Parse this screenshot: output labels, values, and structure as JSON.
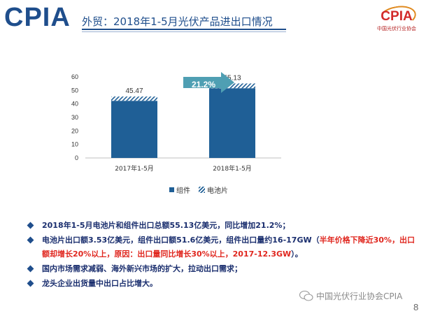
{
  "header": {
    "brand": "CPIA",
    "title": "外贸：2018年1-5月光伏产品进出口情况",
    "logo_text": "CPIA",
    "logo_subtitle": "中国光伏行业协会"
  },
  "growth_callout": "21.2%",
  "chart_data": {
    "type": "bar",
    "stacked": true,
    "categories": [
      "2017年1-5月",
      "2018年1-5月"
    ],
    "series": [
      {
        "name": "组件",
        "values": [
          42.3,
          51.6
        ],
        "color": "#1f5f96"
      },
      {
        "name": "电池片",
        "values": [
          3.17,
          3.53
        ],
        "color": "#1f5f96",
        "pattern": "hatch"
      }
    ],
    "totals": [
      "45.47",
      "55.13"
    ],
    "y_ticks": [
      "0",
      "10",
      "20",
      "30",
      "40",
      "50",
      "60"
    ],
    "ylim": [
      0,
      60
    ],
    "grid": false,
    "legend_position": "bottom"
  },
  "legend": {
    "item1": "组件",
    "item2": "电池片"
  },
  "bullets": {
    "b1": "2018年1-5月电池片和组件出口总额55.13亿美元，同比增加21.2%；",
    "b2_main": "电池片出口额3.53亿美元，组件出口额51.6亿美元，组件出口量约16-17GW（",
    "b2_red": "半年价格下降近30%，出口额却增长20%以上，原因：出口量同比增长30%以上，2017-12.3GW",
    "b2_end": "）。",
    "b3": "国内市场需求减弱、海外新兴市场的扩大，拉动出口需求；",
    "b4": "龙头企业出货量中出口占比增大。"
  },
  "watermark": "中国光伏行业协会CPIA",
  "page_number": "8"
}
